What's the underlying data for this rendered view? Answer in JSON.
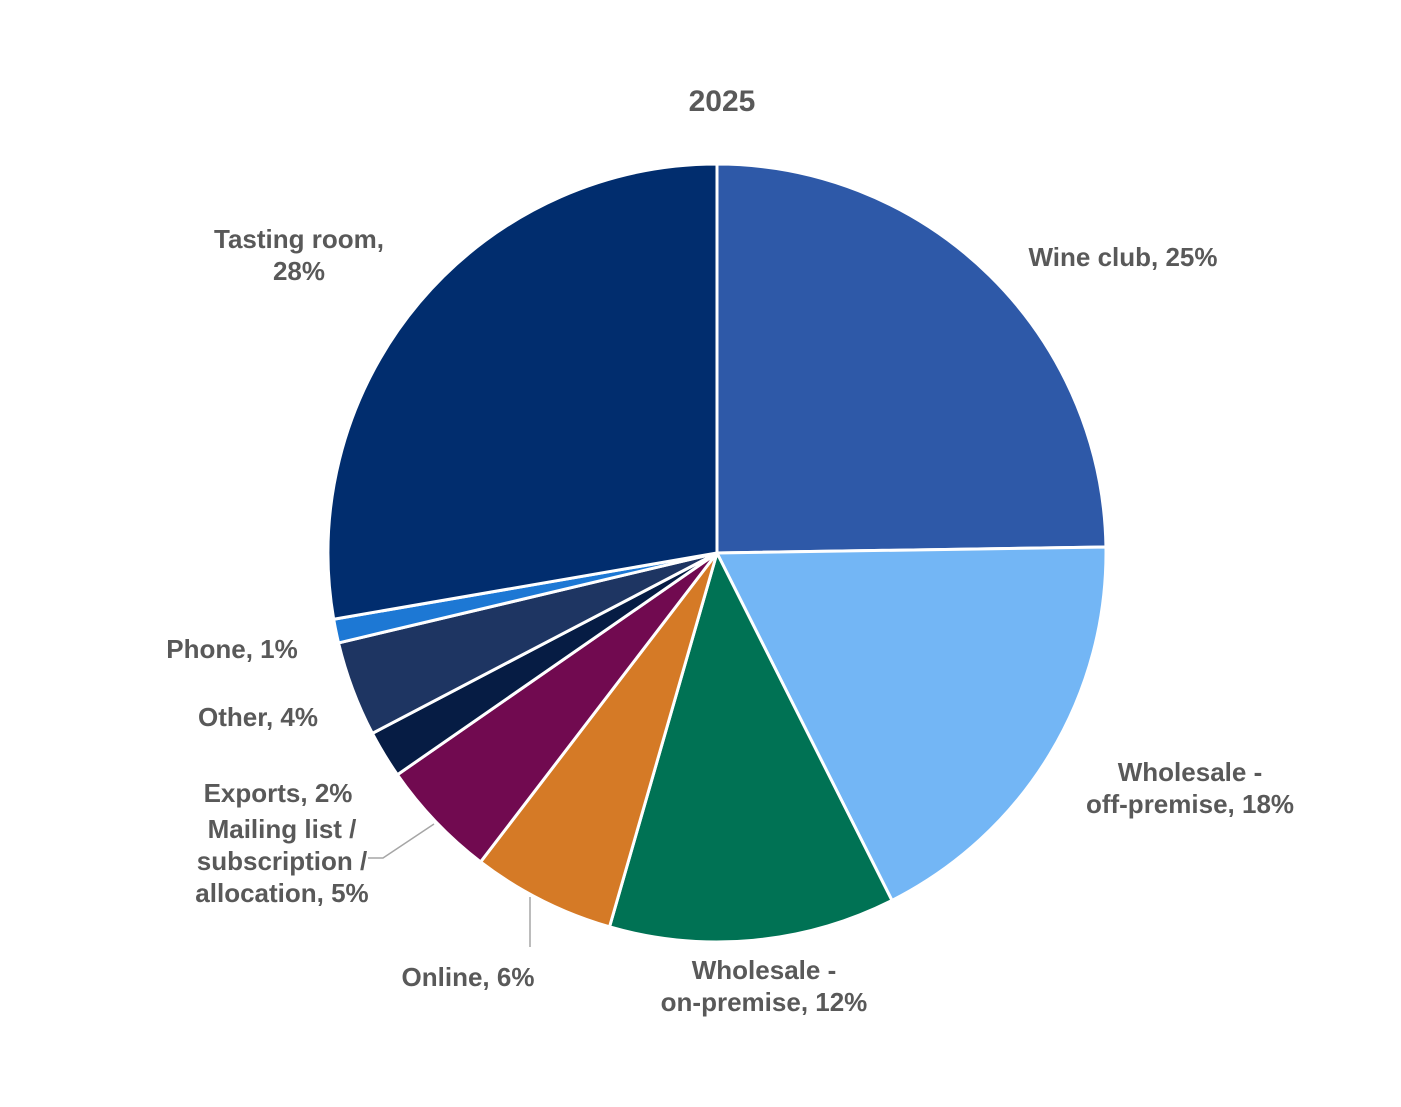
{
  "chart_data": {
    "type": "pie",
    "title": "2025",
    "start_angle_deg": 0,
    "direction": "clockwise",
    "slices": [
      {
        "name": "Wine club",
        "value": 25,
        "label": "Wine club, 25%",
        "color": "#2e59a8"
      },
      {
        "name": "Wholesale - off-premise",
        "value": 18,
        "label": "Wholesale -\noff-premise, 18%",
        "color": "#73b6f5"
      },
      {
        "name": "Wholesale - on-premise",
        "value": 12,
        "label": "Wholesale -\non-premise, 12%",
        "color": "#007254"
      },
      {
        "name": "Online",
        "value": 6,
        "label": "Online, 6%",
        "color": "#d57a26"
      },
      {
        "name": "Mailing list / subscription / allocation",
        "value": 5,
        "label": "Mailing list /\nsubscription /\nallocation, 5%",
        "color": "#710a50"
      },
      {
        "name": "Exports",
        "value": 2,
        "label": "Exports, 2%",
        "color": "#061c44"
      },
      {
        "name": "Other",
        "value": 4,
        "label": "Other, 4%",
        "color": "#1e3562"
      },
      {
        "name": "Phone",
        "value": 1,
        "label": "Phone, 1%",
        "color": "#1d78d4"
      },
      {
        "name": "Tasting room",
        "value": 28,
        "label": "Tasting room,\n28%",
        "color": "#012d6e"
      }
    ]
  }
}
